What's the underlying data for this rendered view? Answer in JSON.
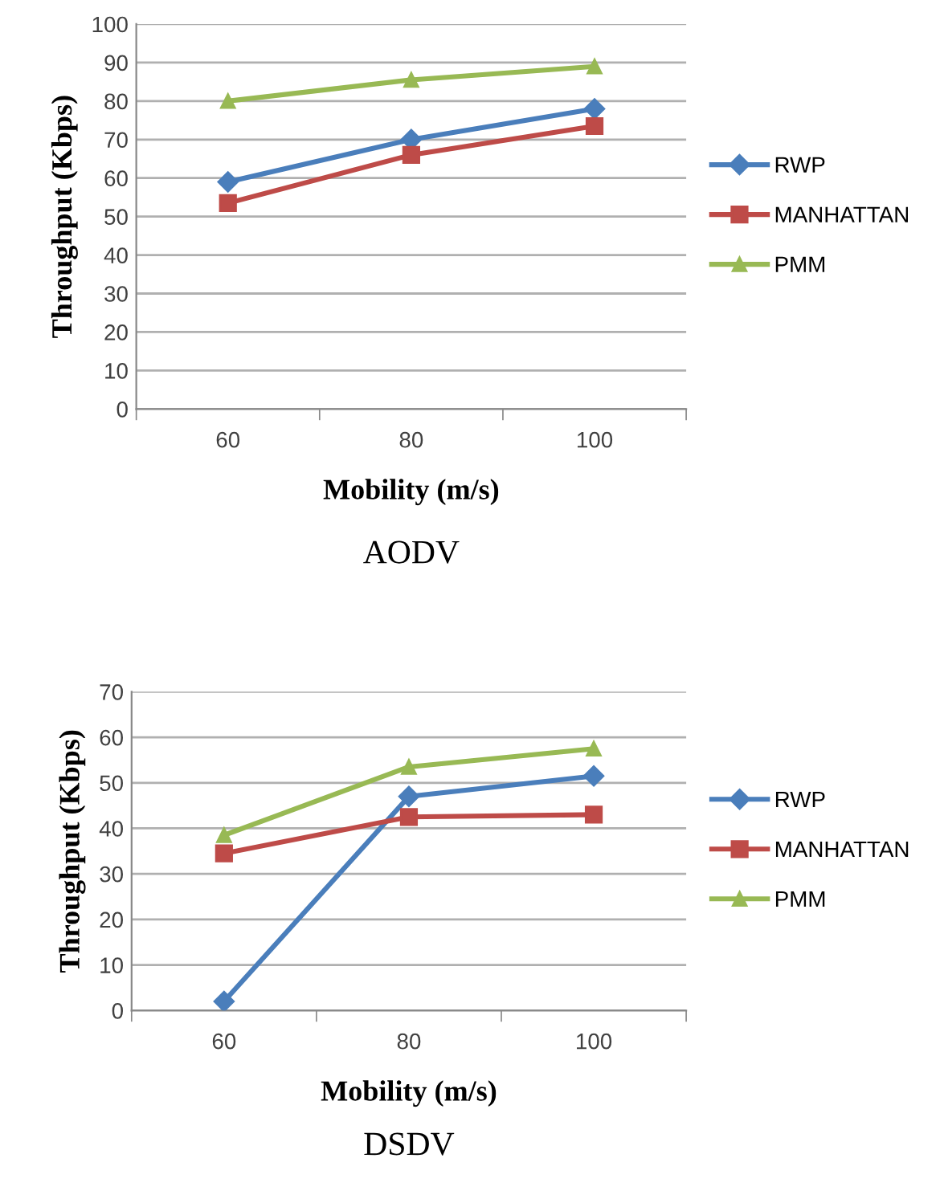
{
  "chart_data": [
    {
      "type": "line",
      "title": "AODV",
      "xlabel": "Mobility (m/s)",
      "ylabel": "Throughput (Kbps)",
      "categories": [
        "60",
        "80",
        "100"
      ],
      "ylim": [
        0,
        100
      ],
      "yticks": [
        0,
        10,
        20,
        30,
        40,
        50,
        60,
        70,
        80,
        90,
        100
      ],
      "grid": "y",
      "legend": "right",
      "series": [
        {
          "name": "RWP",
          "color": "#4a7ebb",
          "marker": "diamond",
          "values": [
            59,
            70,
            78
          ]
        },
        {
          "name": "MANHATTAN",
          "color": "#be4b48",
          "marker": "square",
          "values": [
            53.5,
            66,
            73.5
          ]
        },
        {
          "name": "PMM",
          "color": "#98b954",
          "marker": "triangle",
          "values": [
            80,
            85.5,
            89
          ]
        }
      ]
    },
    {
      "type": "line",
      "title": "DSDV",
      "xlabel": "Mobility (m/s)",
      "ylabel": "Throughput (Kbps)",
      "categories": [
        "60",
        "80",
        "100"
      ],
      "ylim": [
        0,
        70
      ],
      "yticks": [
        0,
        10,
        20,
        30,
        40,
        50,
        60,
        70
      ],
      "grid": "y",
      "legend": "right",
      "series": [
        {
          "name": "RWP",
          "color": "#4a7ebb",
          "marker": "diamond",
          "values": [
            2,
            47,
            51.5
          ]
        },
        {
          "name": "MANHATTAN",
          "color": "#be4b48",
          "marker": "square",
          "values": [
            34.5,
            42.5,
            43
          ]
        },
        {
          "name": "PMM",
          "color": "#98b954",
          "marker": "triangle",
          "values": [
            38.5,
            53.5,
            57.5
          ]
        }
      ]
    }
  ]
}
